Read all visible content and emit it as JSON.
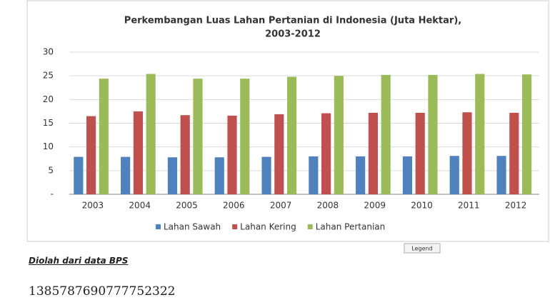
{
  "chart_data": {
    "type": "bar",
    "title": [
      "Perkembangan Luas Lahan Pertanian di Indonesia (Juta Hektar),",
      "2003-2012"
    ],
    "categories": [
      "2003",
      "2004",
      "2005",
      "2006",
      "2007",
      "2008",
      "2009",
      "2010",
      "2011",
      "2012"
    ],
    "series": [
      {
        "name": "Lahan Sawah",
        "color": "#4f81bd",
        "values": [
          7.9,
          7.9,
          7.8,
          7.8,
          7.9,
          8.0,
          8.0,
          8.0,
          8.1,
          8.1
        ]
      },
      {
        "name": "Lahan Kering",
        "color": "#c0504d",
        "values": [
          16.5,
          17.5,
          16.7,
          16.6,
          16.9,
          17.1,
          17.2,
          17.2,
          17.3,
          17.2
        ]
      },
      {
        "name": "Lahan Pertanian",
        "color": "#9bbb59",
        "values": [
          24.4,
          25.4,
          24.4,
          24.4,
          24.8,
          25.0,
          25.2,
          25.2,
          25.4,
          25.3
        ]
      }
    ],
    "ylim": [
      0,
      30
    ],
    "yticks": [
      {
        "value": 0,
        "label": "-"
      },
      5,
      10,
      15,
      20,
      25,
      30
    ],
    "grid": true,
    "legend": "bottom"
  },
  "page": {
    "legend_button": "Legend",
    "caption": "Diolah dari data BPS",
    "post_id": "1385787690777752322"
  }
}
